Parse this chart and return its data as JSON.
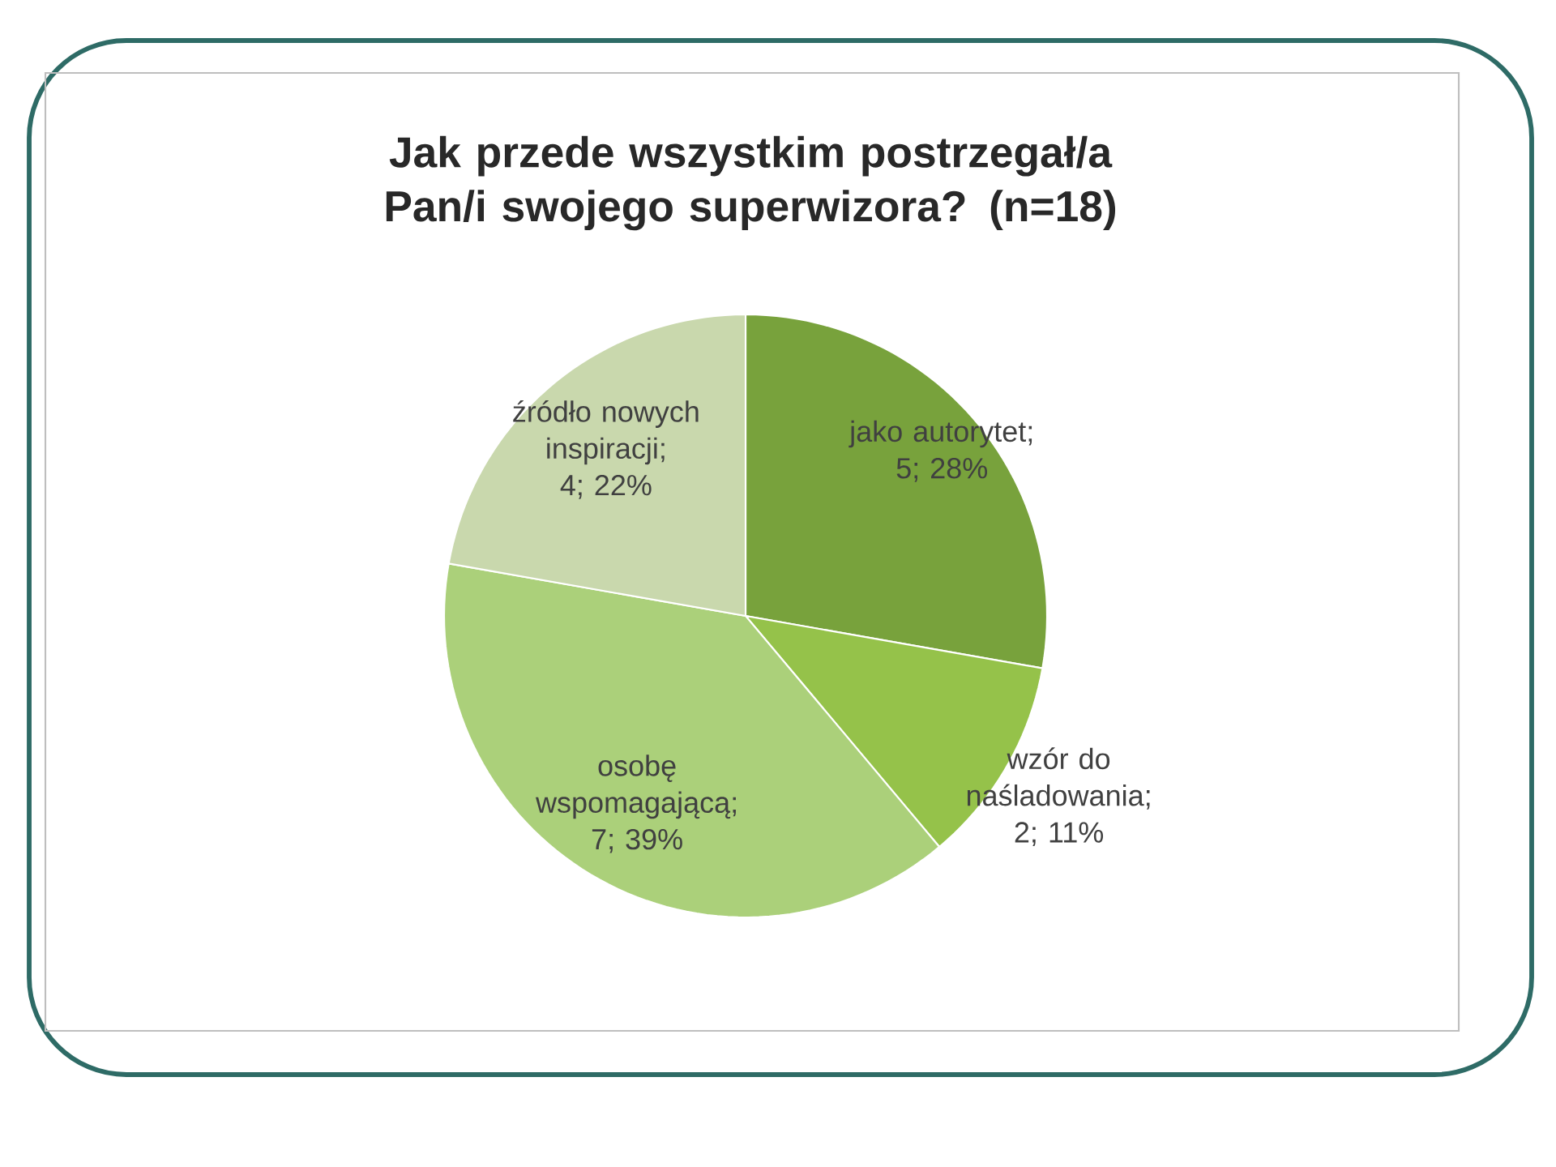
{
  "chart_data": {
    "type": "pie",
    "title": "Jak przede wszystkim postrzegał/a Pan/i swojego superwizora? (n=18)",
    "categories": [
      "jako autorytet",
      "wzór do naśladowania",
      "osobę wspomagającą",
      "źródło nowych inspiracji"
    ],
    "values": [
      5,
      2,
      7,
      4
    ],
    "value_labels": [
      "; 5; 28%",
      "; 2; 11%",
      "; 7; 39%",
      "; 4; 22%"
    ],
    "colors": [
      "#78a23c",
      "#95c24a",
      "#abd07a",
      "#c9d8ad"
    ]
  }
}
